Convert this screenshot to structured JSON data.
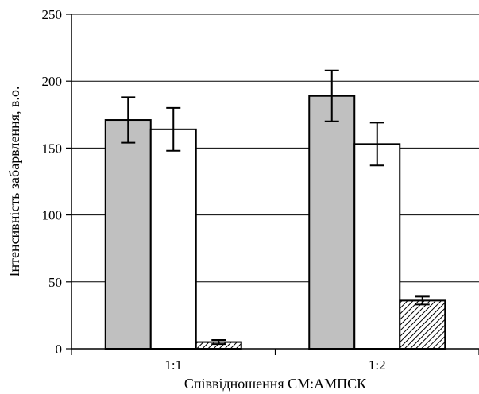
{
  "chart_data": {
    "type": "bar",
    "xlabel": "Співвідношення СМ:АМПСК",
    "ylabel": "Інтенсивність забарвлення, в.о.",
    "ylim": [
      0,
      250
    ],
    "yticks": [
      0,
      50,
      100,
      150,
      200,
      250
    ],
    "grid": true,
    "legend": "none",
    "categories": [
      "1:1",
      "1:2"
    ],
    "series": [
      {
        "fill": "grey",
        "values": [
          171,
          189
        ],
        "error": [
          17,
          19
        ]
      },
      {
        "fill": "white",
        "values": [
          164,
          153
        ],
        "error": [
          16,
          16
        ]
      },
      {
        "fill": "hatched",
        "values": [
          5,
          36
        ],
        "error": [
          1.5,
          3
        ]
      }
    ]
  },
  "colors": {
    "grey_bar": "#c0c0c0",
    "white_bar": "#ffffff",
    "hatch_line": "#000000",
    "gridline": "#000000"
  }
}
